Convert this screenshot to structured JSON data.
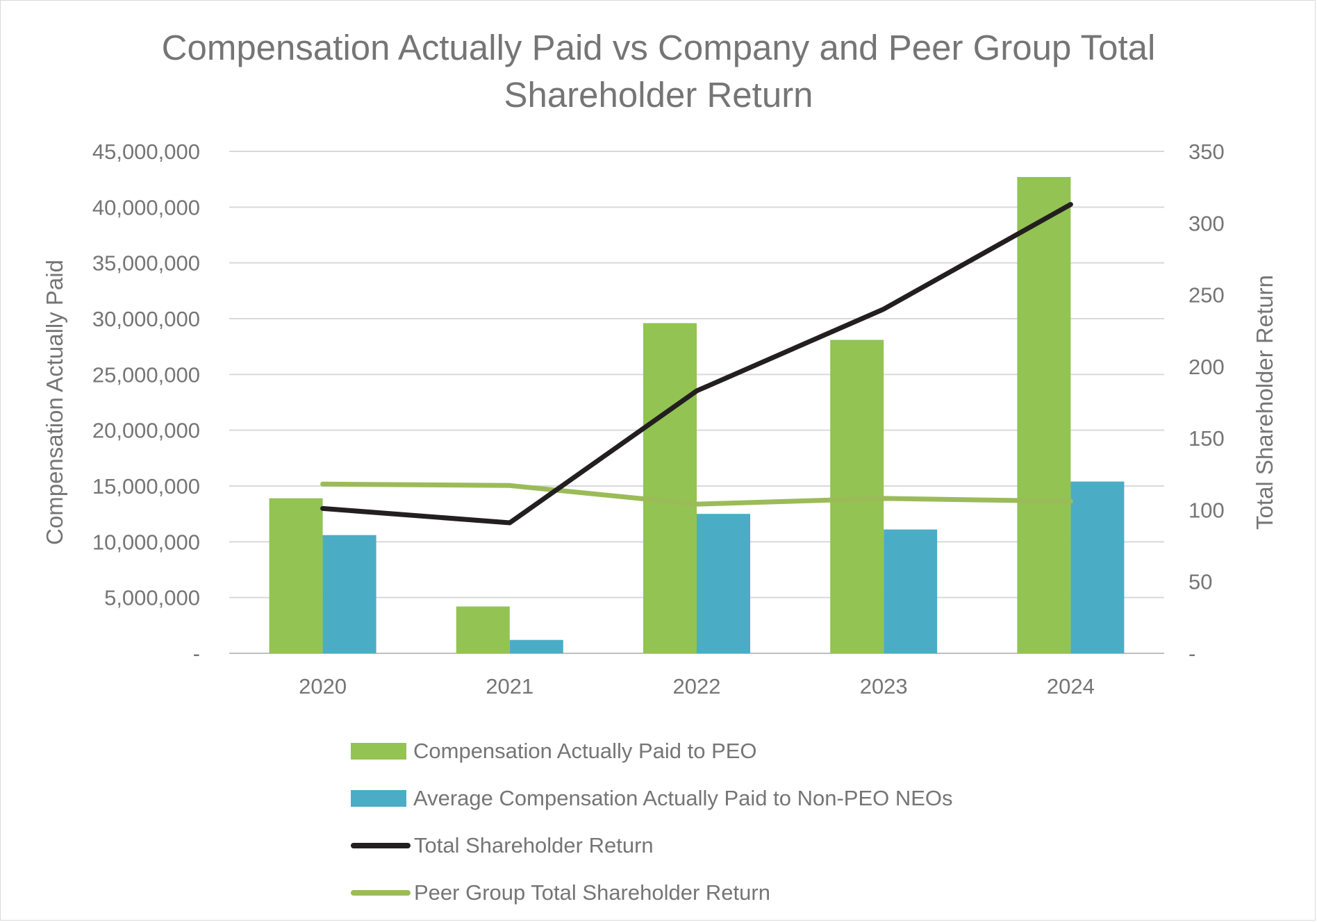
{
  "chart_data": {
    "type": "bar",
    "title_line1": "Compensation Actually Paid vs Company and Peer Group Total",
    "title_line2": "Shareholder Return",
    "categories": [
      "2020",
      "2021",
      "2022",
      "2023",
      "2024"
    ],
    "y_left": {
      "label": "Compensation Actually Paid",
      "lim": [
        0,
        45000000
      ],
      "ticks": [
        0,
        5000000,
        10000000,
        15000000,
        20000000,
        25000000,
        30000000,
        35000000,
        40000000,
        45000000
      ],
      "tick_labels": [
        "-",
        "5,000,000",
        "10,000,000",
        "15,000,000",
        "20,000,000",
        "25,000,000",
        "30,000,000",
        "35,000,000",
        "40,000,000",
        "45,000,000"
      ]
    },
    "y_right": {
      "label": "Total Shareholder Return",
      "lim": [
        0,
        350
      ],
      "ticks": [
        0,
        50,
        100,
        150,
        200,
        250,
        300,
        350
      ],
      "tick_labels": [
        "-",
        "50",
        "100",
        "150",
        "200",
        "250",
        "300",
        "350"
      ]
    },
    "series": [
      {
        "name": "Compensation Actually Paid to PEO",
        "kind": "bar",
        "axis": "left",
        "color": "#92c353",
        "values": [
          13900000,
          4200000,
          29600000,
          28100000,
          42700000
        ]
      },
      {
        "name": "Average Compensation Actually Paid to Non-PEO NEOs",
        "kind": "bar",
        "axis": "left",
        "color": "#4bacc6",
        "values": [
          10600000,
          1200000,
          12500000,
          11100000,
          15400000
        ]
      },
      {
        "name": "Total Shareholder Return",
        "kind": "line",
        "axis": "right",
        "color": "#231f20",
        "values": [
          101,
          91,
          183,
          240,
          313
        ]
      },
      {
        "name": "Peer Group Total Shareholder Return",
        "kind": "line",
        "axis": "right",
        "color": "#9bbb59",
        "values": [
          118,
          117,
          104,
          108,
          106
        ]
      }
    ],
    "grid": true,
    "legend_position": "bottom"
  }
}
